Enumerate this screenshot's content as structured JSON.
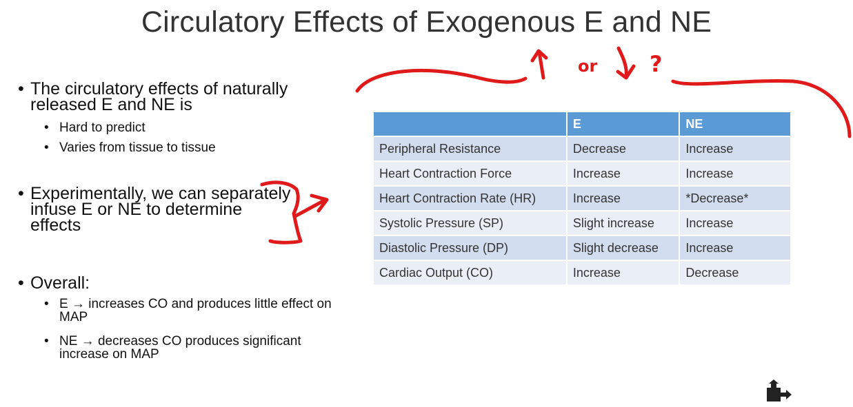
{
  "title": "Circulatory Effects of Exogenous E and NE",
  "bullets": [
    {
      "text": "The circulatory effects of naturally released E and NE is",
      "sub": [
        "Hard to predict",
        "Varies from tissue to tissue"
      ]
    },
    {
      "text": "Experimentally, we can separately infuse E or NE to determine effects",
      "sub": []
    },
    {
      "text": "Overall:",
      "sub": [
        "E → increases CO and produces little effect on MAP",
        "NE → decreases CO produces significant increase on MAP"
      ]
    }
  ],
  "table": {
    "headers": [
      "",
      "E",
      "NE"
    ],
    "rows": [
      [
        "Peripheral Resistance",
        "Decrease",
        "Increase"
      ],
      [
        "Heart Contraction Force",
        "Increase",
        "Increase"
      ],
      [
        "Heart Contraction Rate (HR)",
        "Increase",
        "*Decrease*"
      ],
      [
        "Systolic Pressure (SP)",
        "Slight increase",
        "Increase"
      ],
      [
        "Diastolic Pressure (DP)",
        "Slight decrease",
        "Increase"
      ],
      [
        "Cardiac Output (CO)",
        "Increase",
        "Decrease"
      ]
    ]
  },
  "annotation": {
    "handwriting": "or",
    "question_mark": "?",
    "ink_color": "#e0191b"
  },
  "icons": {
    "share": "share-icon"
  },
  "colors": {
    "header_bg": "#5b9bd5",
    "row_odd": "#d2deef",
    "row_even": "#eaeff7"
  }
}
